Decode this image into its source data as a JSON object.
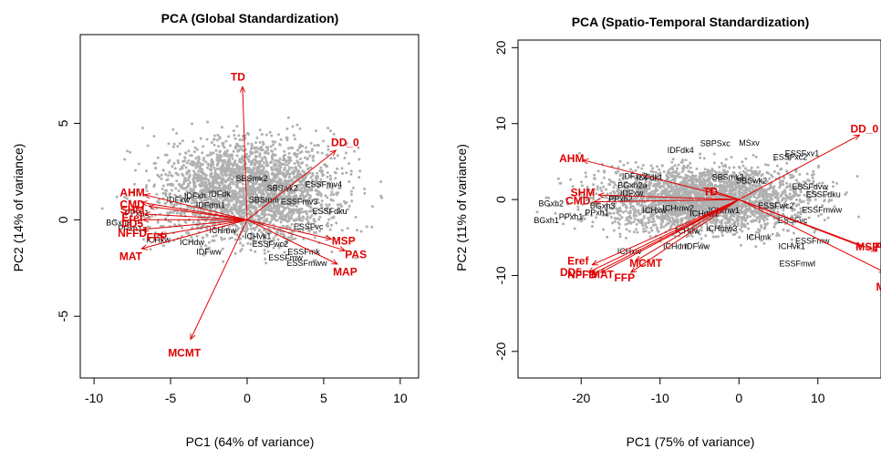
{
  "chart_data": [
    {
      "type": "scatter",
      "subtype": "biplot",
      "title": "PCA (Global Standardization)",
      "xlabel": "PC1 (64% of variance)",
      "ylabel": "PC2 (14% of variance)",
      "xlim": [
        -10.9,
        11.2
      ],
      "ylim": [
        -8.2,
        9.6
      ],
      "xticks": [
        -10,
        -5,
        0,
        5,
        10
      ],
      "yticks": [
        -5,
        0,
        5
      ],
      "point_color": "#b0b0b0",
      "arrow_color": "#e00000",
      "cloud": {
        "x_range": [
          -10,
          10
        ],
        "y_range": [
          -3.5,
          6.5
        ]
      },
      "loadings": [
        {
          "label": "TD",
          "x": -0.3,
          "y": 6.9
        },
        {
          "label": "DD_0",
          "x": 5.8,
          "y": 3.6
        },
        {
          "label": "MSP",
          "x": 5.5,
          "y": -1.0
        },
        {
          "label": "PAS",
          "x": 6.4,
          "y": -1.6
        },
        {
          "label": "MAP",
          "x": 5.9,
          "y": -2.3
        },
        {
          "label": "MCMT",
          "x": -3.7,
          "y": -6.2
        },
        {
          "label": "AHM",
          "x": -6.7,
          "y": 1.3
        },
        {
          "label": "CMD",
          "x": -6.9,
          "y": 0.9
        },
        {
          "label": "SHM",
          "x": -6.4,
          "y": 0.7
        },
        {
          "label": "Eref",
          "x": -6.7,
          "y": 0.3
        },
        {
          "label": "DD5",
          "x": -6.8,
          "y": 0.0
        },
        {
          "label": "NFFD",
          "x": -6.8,
          "y": -0.5
        },
        {
          "label": "FFP",
          "x": -5.8,
          "y": -0.8
        },
        {
          "label": "MAT",
          "x": -6.9,
          "y": -1.5
        }
      ],
      "loading_labels": [
        {
          "label": "TD",
          "x": -0.6,
          "y": 7.4
        },
        {
          "label": "DD_0",
          "x": 6.4,
          "y": 4.0
        },
        {
          "label": "MSP",
          "x": 6.3,
          "y": -1.1
        },
        {
          "label": "PAS",
          "x": 7.1,
          "y": -1.8
        },
        {
          "label": "MAP",
          "x": 6.4,
          "y": -2.7
        },
        {
          "label": "MCMT",
          "x": -4.1,
          "y": -6.9
        },
        {
          "label": "AHM",
          "x": -7.5,
          "y": 1.4
        },
        {
          "label": "CMD",
          "x": -7.5,
          "y": 0.8
        },
        {
          "label": "SHM",
          "x": -7.5,
          "y": 0.5
        },
        {
          "label": "Eref",
          "x": -7.5,
          "y": 0.1
        },
        {
          "label": "DD5",
          "x": -7.5,
          "y": -0.2
        },
        {
          "label": "NFFD",
          "x": -7.5,
          "y": -0.7
        },
        {
          "label": "FFP",
          "x": -5.9,
          "y": -0.9
        },
        {
          "label": "MAT",
          "x": -7.6,
          "y": -1.9
        }
      ],
      "unit_labels": [
        {
          "label": "SBSmk2",
          "x": 0.3,
          "y": 2.0
        },
        {
          "label": "SBSwk2",
          "x": 2.3,
          "y": 1.5
        },
        {
          "label": "ESSFmv4",
          "x": 5.0,
          "y": 1.7
        },
        {
          "label": "IDFxh",
          "x": -3.4,
          "y": 1.1
        },
        {
          "label": "IDFdk",
          "x": -1.8,
          "y": 1.2
        },
        {
          "label": "SBSmm",
          "x": 1.1,
          "y": 0.9
        },
        {
          "label": "ESSFmv3",
          "x": 3.4,
          "y": 0.8
        },
        {
          "label": "ESSFdku",
          "x": 5.4,
          "y": 0.3
        },
        {
          "label": "IDFxw",
          "x": -4.5,
          "y": 0.9
        },
        {
          "label": "IDFdm1",
          "x": -2.4,
          "y": 0.6
        },
        {
          "label": "PPxh1",
          "x": -7.2,
          "y": 0.2
        },
        {
          "label": "BGxh3",
          "x": -8.4,
          "y": -0.3
        },
        {
          "label": "PPxh1a",
          "x": -7.5,
          "y": -0.6
        },
        {
          "label": "ICHxw",
          "x": -5.8,
          "y": -1.2
        },
        {
          "label": "ICHdw",
          "x": -3.6,
          "y": -1.3
        },
        {
          "label": "ICHmw",
          "x": -1.6,
          "y": -0.7
        },
        {
          "label": "IDFww",
          "x": -2.5,
          "y": -1.8
        },
        {
          "label": "ESSFwc2",
          "x": 1.5,
          "y": -1.4
        },
        {
          "label": "ESSFvc",
          "x": 4.0,
          "y": -0.5
        },
        {
          "label": "ESSFmk",
          "x": 3.7,
          "y": -1.8
        },
        {
          "label": "ESSFmw",
          "x": 2.5,
          "y": -2.1
        },
        {
          "label": "ESSFmww",
          "x": 3.9,
          "y": -2.4
        },
        {
          "label": "ICHvk1",
          "x": 0.7,
          "y": -1.0
        }
      ]
    },
    {
      "type": "scatter",
      "subtype": "biplot",
      "title": "PCA (Spatio-Temporal Standardization)",
      "xlabel": "PC1 (75% of variance)",
      "ylabel": "PC2 (11% of variance)",
      "xlim": [
        -28,
        18
      ],
      "ylim": [
        -23.5,
        21
      ],
      "xticks": [
        -20,
        -10,
        0,
        10
      ],
      "yticks": [
        -20,
        -10,
        0,
        10,
        20
      ],
      "point_color": "#b0b0b0",
      "arrow_color": "#e00000",
      "cloud": {
        "x_range": [
          -27,
          18
        ],
        "y_range": [
          -8,
          8
        ]
      },
      "loadings": [
        {
          "label": "DD_0",
          "x": 15.3,
          "y": 8.5
        },
        {
          "label": "AHM",
          "x": -19.8,
          "y": 5.2
        },
        {
          "label": "SHM",
          "x": -17.8,
          "y": 0.6
        },
        {
          "label": "CMD",
          "x": -18.4,
          "y": -0.3
        },
        {
          "label": "MSP",
          "x": 15.6,
          "y": -6.2
        },
        {
          "label": "PAS",
          "x": 17.5,
          "y": -6.8
        },
        {
          "label": "MAP",
          "x": 18.5,
          "y": -9.6
        },
        {
          "label": "Eref",
          "x": -18.6,
          "y": -8.6
        },
        {
          "label": "DD5",
          "x": -19.1,
          "y": -9.6
        },
        {
          "label": "NFFD",
          "x": -18.7,
          "y": -9.9
        },
        {
          "label": "MAT",
          "x": -17.5,
          "y": -9.6
        },
        {
          "label": "FFP",
          "x": -13.7,
          "y": -9.6
        },
        {
          "label": "MCMT",
          "x": -13.1,
          "y": -8.1
        },
        {
          "label": "TD",
          "x": -3.8,
          "y": 1.3
        }
      ],
      "loading_labels": [
        {
          "label": "DD_0",
          "x": 15.9,
          "y": 9.3
        },
        {
          "label": "AHM",
          "x": -21.2,
          "y": 5.4
        },
        {
          "label": "SHM",
          "x": -19.8,
          "y": 0.9
        },
        {
          "label": "CMD",
          "x": -20.4,
          "y": -0.2
        },
        {
          "label": "MSP",
          "x": 16.3,
          "y": -6.2
        },
        {
          "label": "PAS",
          "x": 18.6,
          "y": -6.2
        },
        {
          "label": "MAP",
          "x": 18.9,
          "y": -11.5
        },
        {
          "label": "Eref",
          "x": -20.4,
          "y": -8.1
        },
        {
          "label": "DD5",
          "x": -21.3,
          "y": -9.6
        },
        {
          "label": "NFFD",
          "x": -19.9,
          "y": -9.9
        },
        {
          "label": "MAT",
          "x": -17.3,
          "y": -9.9
        },
        {
          "label": "FFP",
          "x": -14.5,
          "y": -10.3
        },
        {
          "label": "MCMT",
          "x": -11.8,
          "y": -8.4
        },
        {
          "label": "TD",
          "x": -3.6,
          "y": 1.0
        }
      ],
      "unit_labels": [
        {
          "label": "SBPSxc",
          "x": -3.0,
          "y": 7.0
        },
        {
          "label": "MSxv",
          "x": 1.3,
          "y": 7.1
        },
        {
          "label": "IDFdk4",
          "x": -7.4,
          "y": 6.1
        },
        {
          "label": "ESSFxv1",
          "x": 8.0,
          "y": 5.7
        },
        {
          "label": "ESSFxc2",
          "x": 6.5,
          "y": 5.2
        },
        {
          "label": "IDFxx2",
          "x": -13.2,
          "y": 2.7
        },
        {
          "label": "IDFdk1",
          "x": -11.3,
          "y": 2.5
        },
        {
          "label": "BGxh2a",
          "x": -13.5,
          "y": 1.5
        },
        {
          "label": "IDFxw",
          "x": -13.6,
          "y": 0.5
        },
        {
          "label": "PPxh2",
          "x": -15.0,
          "y": -0.3
        },
        {
          "label": "BGxh2",
          "x": -23.8,
          "y": -0.9
        },
        {
          "label": "BGxh3",
          "x": -17.3,
          "y": -1.2
        },
        {
          "label": "PPxh1",
          "x": -18.0,
          "y": -2.1
        },
        {
          "label": "BGxh1",
          "x": -24.4,
          "y": -3.1
        },
        {
          "label": "PPxh1",
          "x": -21.3,
          "y": -2.6
        },
        {
          "label": "ICHxw",
          "x": -10.7,
          "y": -1.8
        },
        {
          "label": "ICHdw",
          "x": -6.5,
          "y": -4.5
        },
        {
          "label": "IDFww",
          "x": -5.3,
          "y": -6.5
        },
        {
          "label": "ICHdm",
          "x": -8.0,
          "y": -6.5
        },
        {
          "label": "ICHxw",
          "x": -13.9,
          "y": -7.2
        },
        {
          "label": "ICHmw3",
          "x": -2.2,
          "y": -4.2
        },
        {
          "label": "ICHmk",
          "x": 2.5,
          "y": -5.3
        },
        {
          "label": "ICHvk1",
          "x": 6.7,
          "y": -6.5
        },
        {
          "label": "ESSFmw",
          "x": 9.3,
          "y": -5.8
        },
        {
          "label": "ESSFmwl",
          "x": 7.4,
          "y": -8.8
        },
        {
          "label": "ESSFdku",
          "x": 10.7,
          "y": 0.3
        },
        {
          "label": "ESSFdvw",
          "x": 9.0,
          "y": 1.3
        },
        {
          "label": "ESSFmww",
          "x": 10.5,
          "y": -1.7
        },
        {
          "label": "ESSFvc",
          "x": 6.8,
          "y": -3.1
        },
        {
          "label": "SBSmk2",
          "x": -1.4,
          "y": 2.6
        },
        {
          "label": "SBSwk2",
          "x": 1.6,
          "y": 2.1
        },
        {
          "label": "ICHmw2",
          "x": -7.7,
          "y": -1.5
        },
        {
          "label": "ICHdw1",
          "x": -4.4,
          "y": -2.2
        },
        {
          "label": "ICHmw1",
          "x": -1.9,
          "y": -1.8
        },
        {
          "label": "ESSFwc2",
          "x": 4.7,
          "y": -1.2
        }
      ]
    }
  ]
}
